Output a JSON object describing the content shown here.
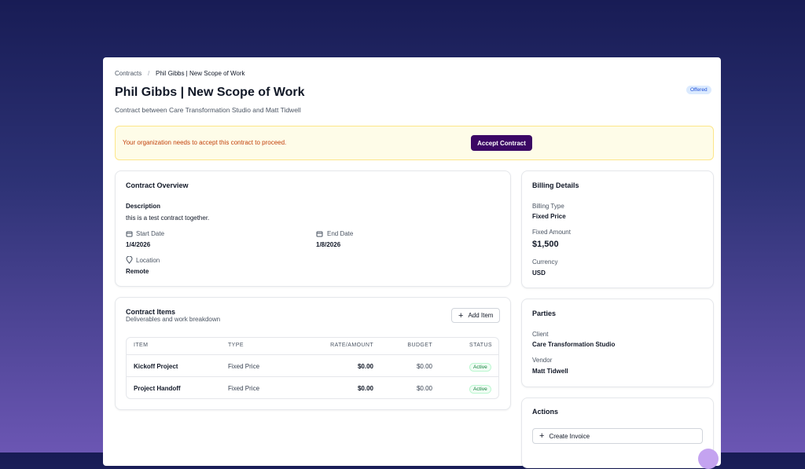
{
  "breadcrumb": {
    "parent": "Contracts",
    "separator": "/",
    "current": "Phil Gibbs | New Scope of Work"
  },
  "header": {
    "title": "Phil Gibbs | New Scope of Work",
    "subtitle": "Contract between Care Transformation Studio and Matt Tidwell",
    "status": "Offered"
  },
  "alert": {
    "message": "Your organization needs to accept this contract to proceed.",
    "button": "Accept Contract"
  },
  "overview": {
    "title": "Contract Overview",
    "description_label": "Description",
    "description": "this is a test contract together.",
    "start_label": "Start Date",
    "start": "1/4/2026",
    "end_label": "End Date",
    "end": "1/8/2026",
    "location_label": "Location",
    "location": "Remote"
  },
  "items": {
    "title": "Contract Items",
    "subtitle": "Deliverables and work breakdown",
    "add_button": "Add Item",
    "columns": [
      "ITEM",
      "TYPE",
      "RATE/AMOUNT",
      "BUDGET",
      "STATUS"
    ],
    "rows": [
      [
        "Kickoff Project",
        "Fixed Price",
        "$0.00",
        "$0.00",
        "Active"
      ],
      [
        "Project Handoff",
        "Fixed Price",
        "$0.00",
        "$0.00",
        "Active"
      ]
    ]
  },
  "billing": {
    "title": "Billing Details",
    "type_label": "Billing Type",
    "type": "Fixed Price",
    "amount_label": "Fixed Amount",
    "amount": "$1,500",
    "currency_label": "Currency",
    "currency": "USD"
  },
  "parties": {
    "title": "Parties",
    "client_label": "Client",
    "client": "Care Transformation Studio",
    "vendor_label": "Vendor",
    "vendor": "Matt Tidwell"
  },
  "actions": {
    "title": "Actions",
    "create_invoice": "Create Invoice"
  }
}
